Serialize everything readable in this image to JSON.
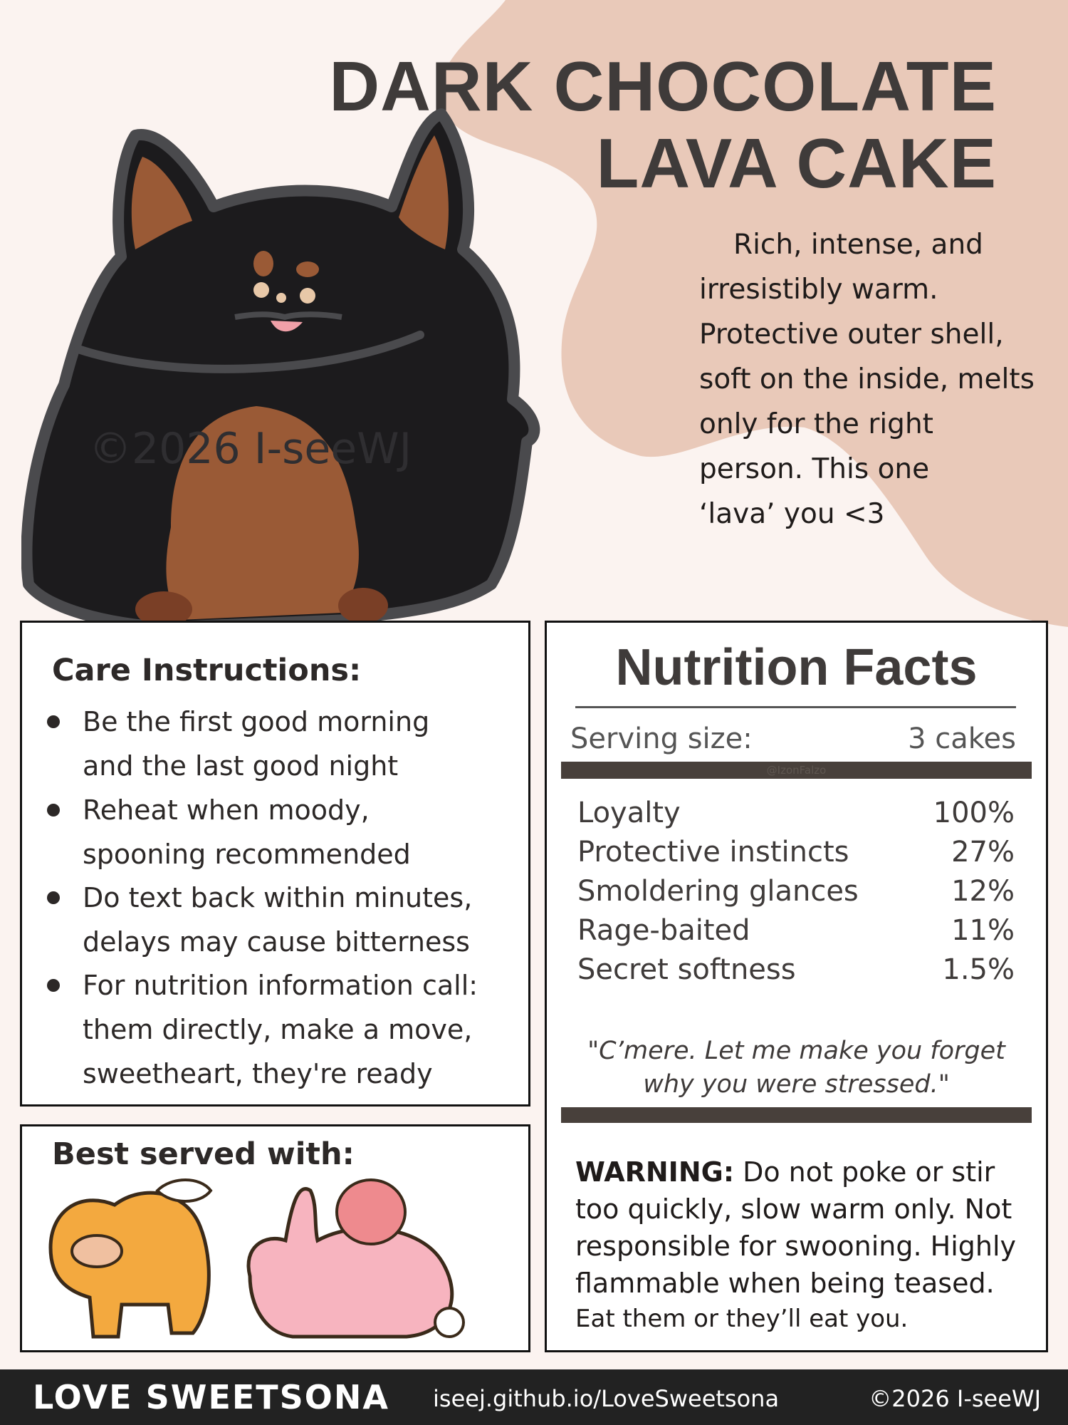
{
  "title": {
    "line1": "DARK CHOCOLATE",
    "line2": "LAVA CAKE"
  },
  "description": [
    "Rich, intense, and",
    "irresistibly warm.",
    "Protective outer shell,",
    "soft on the inside, melts",
    "only for the right",
    "person. This one",
    "‘lava’ you <3"
  ],
  "watermark": "©2026 I-seeWJ",
  "care": {
    "heading": "Care Instructions:",
    "items": [
      [
        "Be the first good morning",
        "and the last good night"
      ],
      [
        "Reheat when moody,",
        "spooning recommended"
      ],
      [
        "Do text back within minutes,",
        "delays may cause bitterness"
      ],
      [
        "For nutrition information call:",
        "them directly, make a move,",
        "sweetheart, they're ready"
      ]
    ]
  },
  "best_served": {
    "heading": "Best served with:"
  },
  "nutrition": {
    "title": "Nutrition Facts",
    "serving_label": "Serving size:",
    "serving_value": "3 cakes",
    "bar_watermark": "@IzonFalzo",
    "rows": [
      {
        "label": "Loyalty",
        "value": "100%"
      },
      {
        "label": "Protective instincts",
        "value": "27%"
      },
      {
        "label": "Smoldering glances",
        "value": "12%"
      },
      {
        "label": "Rage-baited",
        "value": "11%"
      },
      {
        "label": "Secret softness",
        "value": "1.5%"
      }
    ],
    "quote": [
      "\"C’mere. Let me make you forget",
      "why you were stressed.\""
    ],
    "warning_label": "WARNING:",
    "warning_lines": [
      " Do not poke or stir",
      "too quickly, slow warm only. Not",
      "responsible for swooning. Highly",
      "flammable when being teased."
    ],
    "warning_last": "Eat them or they’ll eat you."
  },
  "footer": {
    "brand": "LOVE SWEETSONA",
    "url": "iseej.github.io/LoveSweetsona",
    "copyright": "©2026 I-seeWJ"
  },
  "colors": {
    "background": "#fbf3f0",
    "blob": "#e9c9b9",
    "text": "#3f3b3a",
    "footer": "#222222"
  }
}
